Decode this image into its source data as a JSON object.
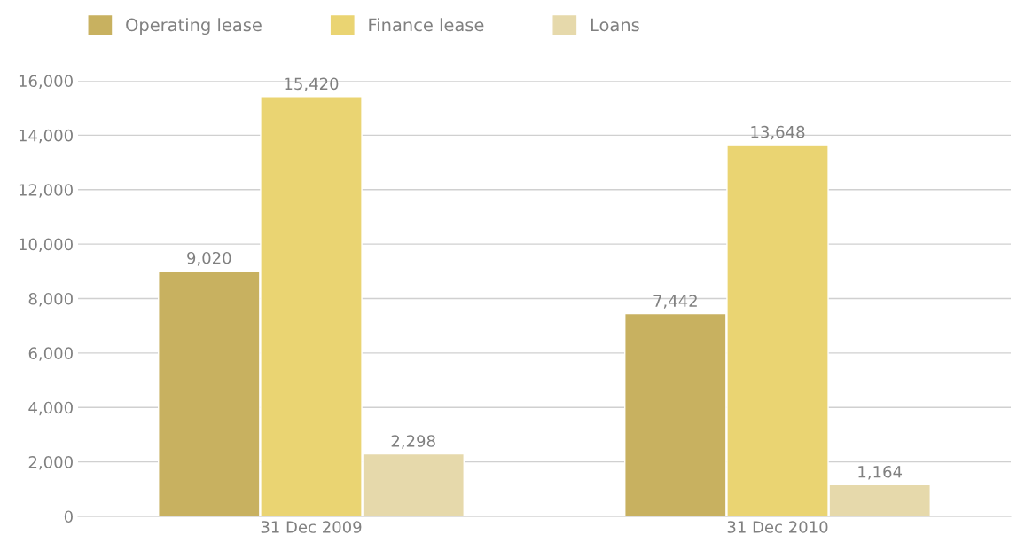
{
  "chart_data": {
    "type": "bar",
    "categories": [
      "31 Dec 2009",
      "31 Dec 2010"
    ],
    "series": [
      {
        "name": "Operating lease",
        "color": "#c8b160",
        "values": [
          9020,
          7442
        ],
        "value_labels": [
          "9,020",
          "7,442"
        ]
      },
      {
        "name": "Finance lease",
        "color": "#ead472",
        "values": [
          15420,
          13648
        ],
        "value_labels": [
          "15,420",
          "13,648"
        ]
      },
      {
        "name": "Loans",
        "color": "#e6d9ab",
        "values": [
          2298,
          1164
        ],
        "value_labels": [
          "2,298",
          "1,164"
        ]
      }
    ],
    "ylim": [
      0,
      16000
    ],
    "yticks": [
      0,
      {
        "value": 2000,
        "label": "2,000"
      },
      {
        "value": 4000,
        "label": "4,000"
      },
      {
        "value": 6000,
        "label": "6,000"
      },
      {
        "value": 8000,
        "label": "8,000"
      },
      {
        "value": 10000,
        "label": "10,000"
      },
      {
        "value": 12000,
        "label": "12,000"
      },
      {
        "value": 14000,
        "label": "14,000"
      },
      {
        "value": 16000,
        "label": "16,000"
      }
    ],
    "grid": "y",
    "legend": "top left"
  }
}
